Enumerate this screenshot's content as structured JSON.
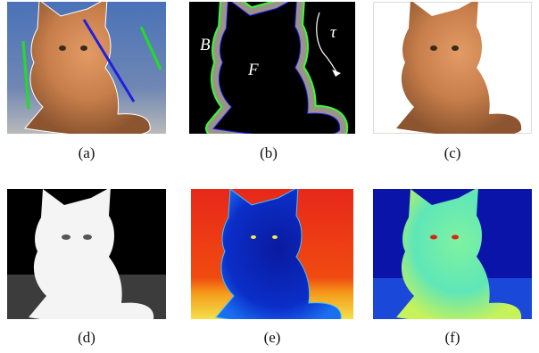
{
  "figure": {
    "panels": [
      {
        "caption": "(a)",
        "content": "cat photo with user scribbles (green: background, blue: foreground)"
      },
      {
        "caption": "(b)",
        "content": "trimap with boundary band",
        "labels": {
          "background": "B",
          "foreground": "F",
          "width": "τ"
        }
      },
      {
        "caption": "(c)",
        "content": "extracted cat on white background"
      },
      {
        "caption": "(d)",
        "content": "grayscale alpha matte"
      },
      {
        "caption": "(e)",
        "content": "jet colormap map"
      },
      {
        "caption": "(f)",
        "content": "jet colormap map"
      }
    ]
  },
  "colors": {
    "scribble_foreground": "#1f1fe0",
    "scribble_background": "#22dd22",
    "trimap_outer": "#33ff33",
    "trimap_inner": "#1a1aff",
    "band": "#9a9488"
  }
}
